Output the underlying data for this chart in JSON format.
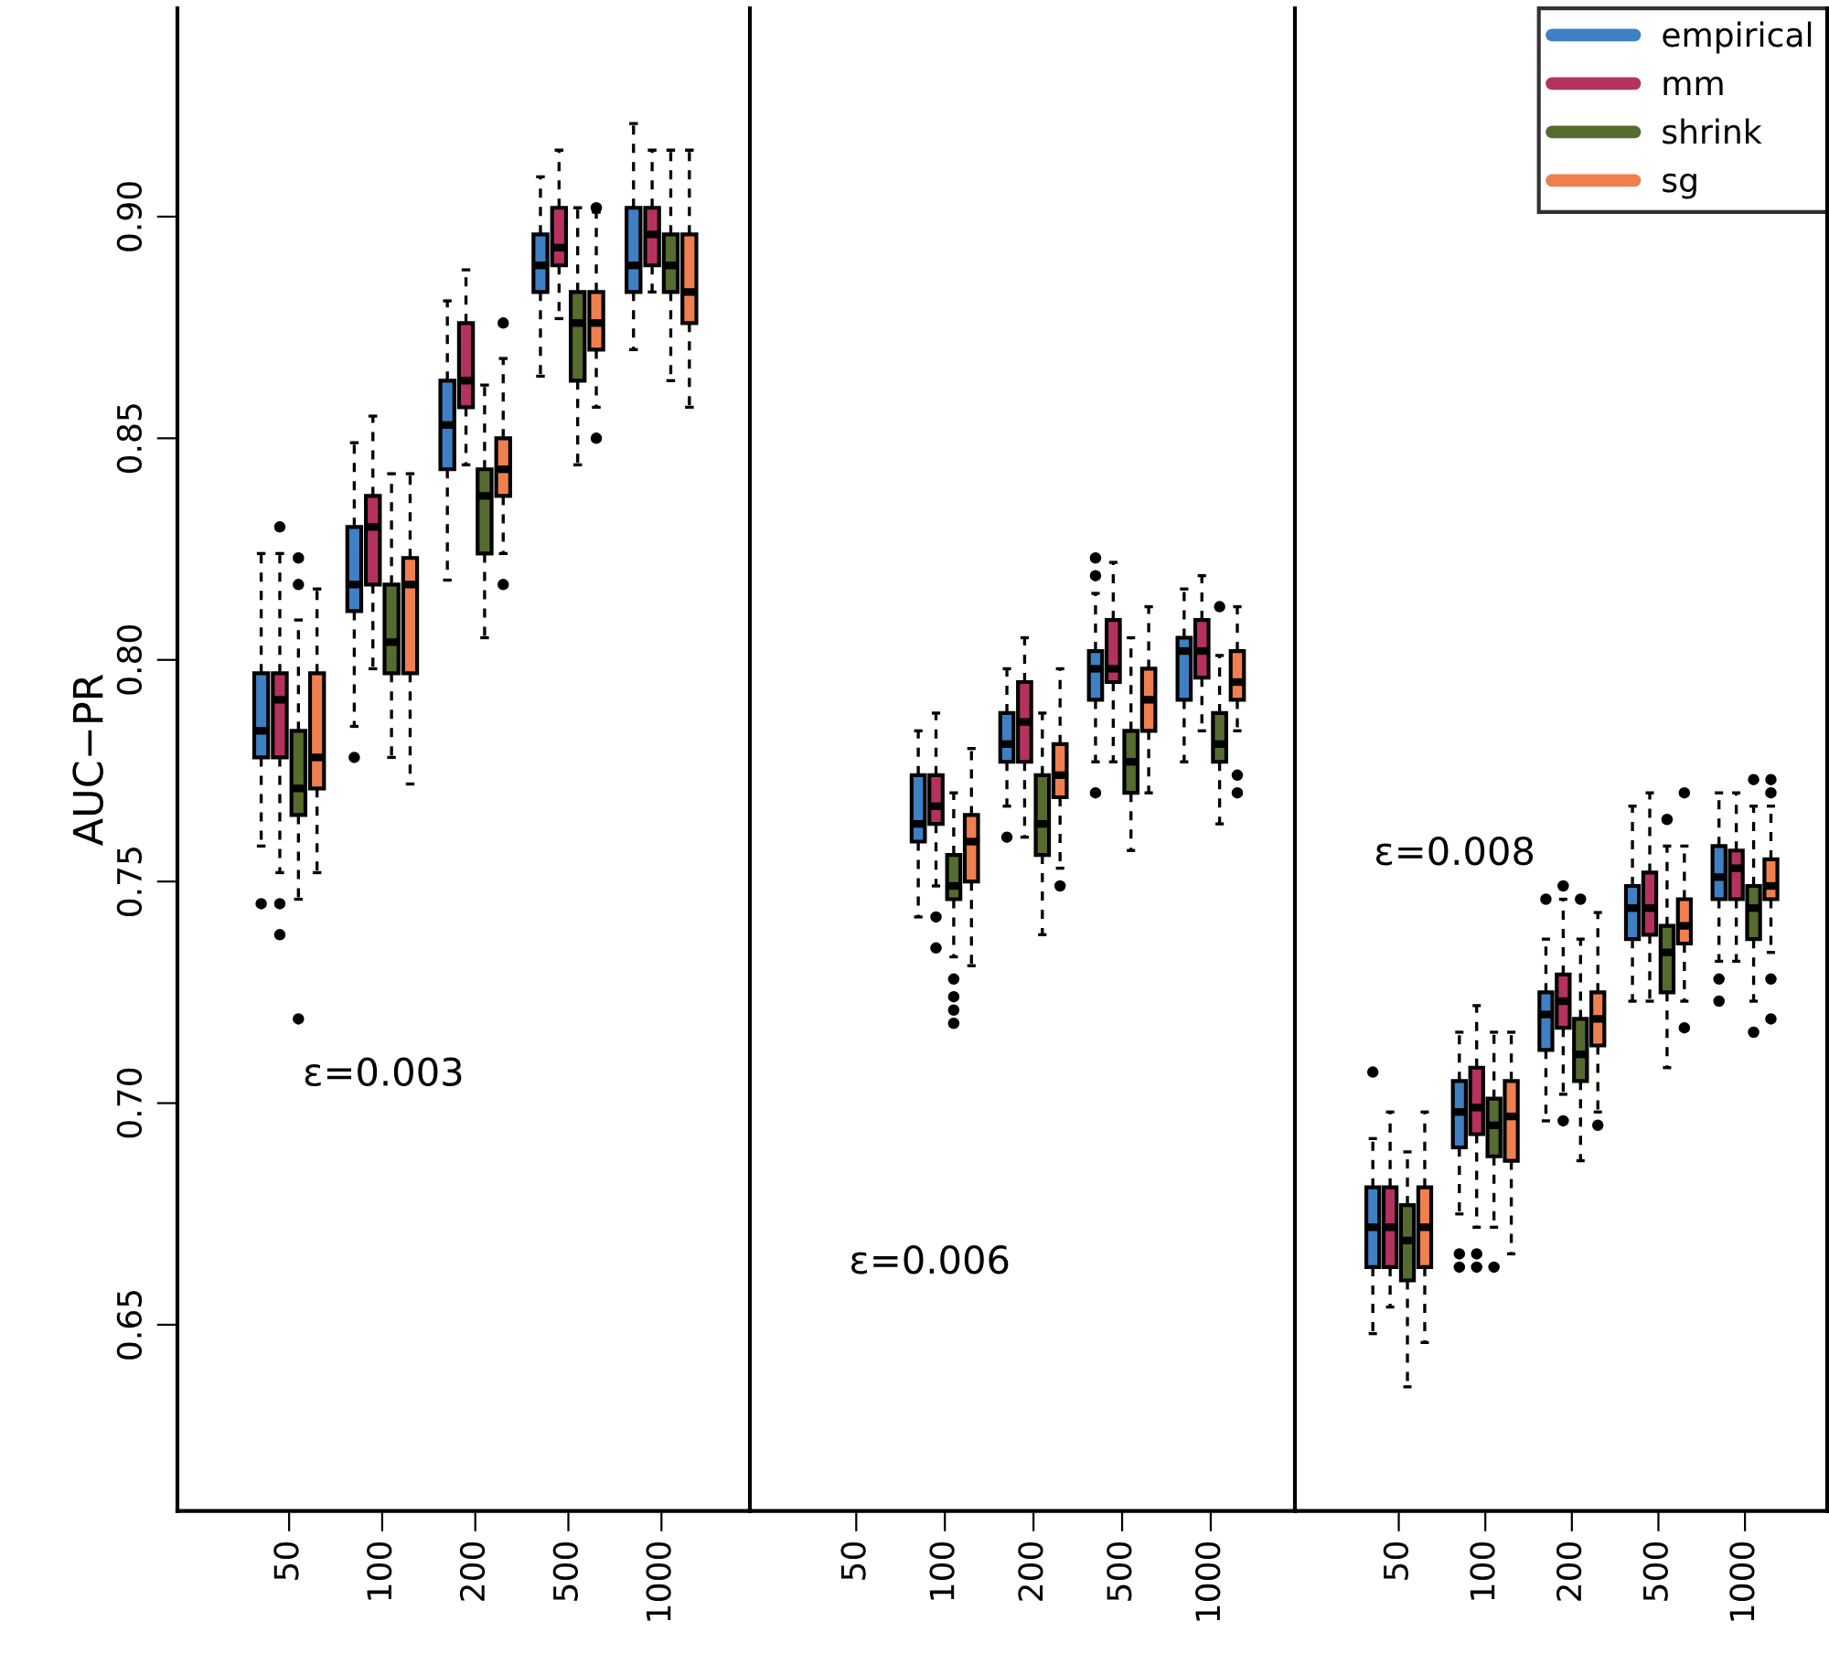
{
  "chart_data": [
    {
      "type": "box",
      "ylabel": "AUC−PR",
      "categories": [
        "50",
        "100",
        "200",
        "500",
        "1000"
      ],
      "ylim": [
        0.608,
        0.947
      ],
      "yticks": [
        {
          "value": 0.65,
          "label": "0.65"
        },
        {
          "value": 0.7,
          "label": "0.70"
        },
        {
          "value": 0.75,
          "label": "0.75"
        },
        {
          "value": 0.8,
          "label": "0.80"
        },
        {
          "value": 0.85,
          "label": "0.85"
        },
        {
          "value": 0.9,
          "label": "0.90"
        }
      ],
      "tick_labels": "xy",
      "annotations": [
        "ε=0.003"
      ],
      "series": [
        {
          "color": "#3f7fc4",
          "boxes": [
            {
              "low": 0.758,
              "q1": 0.778,
              "median": 0.784,
              "q3": 0.797,
              "high": 0.824,
              "outliers": [
                0.745
              ]
            },
            {
              "low": 0.785,
              "q1": 0.811,
              "median": 0.817,
              "q3": 0.83,
              "high": 0.849,
              "outliers": [
                0.778
              ]
            },
            {
              "low": 0.818,
              "q1": 0.843,
              "median": 0.853,
              "q3": 0.863,
              "high": 0.881
            },
            {
              "low": 0.864,
              "q1": 0.883,
              "median": 0.889,
              "q3": 0.896,
              "high": 0.909
            },
            {
              "low": 0.87,
              "q1": 0.883,
              "median": 0.889,
              "q3": 0.902,
              "high": 0.921
            }
          ]
        },
        {
          "color": "#b5325f",
          "boxes": [
            {
              "low": 0.752,
              "q1": 0.778,
              "median": 0.791,
              "q3": 0.797,
              "high": 0.824,
              "outliers": [
                0.83,
                0.745,
                0.738
              ]
            },
            {
              "low": 0.798,
              "q1": 0.817,
              "median": 0.83,
              "q3": 0.837,
              "high": 0.855
            },
            {
              "low": 0.844,
              "q1": 0.857,
              "median": 0.863,
              "q3": 0.876,
              "high": 0.888
            },
            {
              "low": 0.877,
              "q1": 0.889,
              "median": 0.893,
              "q3": 0.902,
              "high": 0.915
            },
            {
              "low": 0.883,
              "q1": 0.889,
              "median": 0.896,
              "q3": 0.902,
              "high": 0.915
            }
          ]
        },
        {
          "color": "#566b2e",
          "boxes": [
            {
              "low": 0.746,
              "q1": 0.765,
              "median": 0.771,
              "q3": 0.784,
              "high": 0.809,
              "outliers": [
                0.823,
                0.817,
                0.719
              ]
            },
            {
              "low": 0.778,
              "q1": 0.797,
              "median": 0.804,
              "q3": 0.817,
              "high": 0.842
            },
            {
              "low": 0.805,
              "q1": 0.824,
              "median": 0.837,
              "q3": 0.843,
              "high": 0.862
            },
            {
              "low": 0.844,
              "q1": 0.863,
              "median": 0.876,
              "q3": 0.883,
              "high": 0.902
            },
            {
              "low": 0.863,
              "q1": 0.883,
              "median": 0.889,
              "q3": 0.896,
              "high": 0.915
            }
          ]
        },
        {
          "color": "#f07f4f",
          "boxes": [
            {
              "low": 0.752,
              "q1": 0.771,
              "median": 0.778,
              "q3": 0.797,
              "high": 0.816
            },
            {
              "low": 0.772,
              "q1": 0.797,
              "median": 0.817,
              "q3": 0.823,
              "high": 0.842
            },
            {
              "low": 0.824,
              "q1": 0.837,
              "median": 0.843,
              "q3": 0.85,
              "high": 0.868,
              "outliers": [
                0.876,
                0.817
              ]
            },
            {
              "low": 0.857,
              "q1": 0.87,
              "median": 0.876,
              "q3": 0.883,
              "high": 0.901,
              "outliers": [
                0.902,
                0.85
              ]
            },
            {
              "low": 0.857,
              "q1": 0.876,
              "median": 0.883,
              "q3": 0.896,
              "high": 0.915
            }
          ]
        }
      ]
    },
    {
      "type": "box",
      "categories": [
        "50",
        "100",
        "200",
        "500",
        "1000"
      ],
      "ylim": [
        0.608,
        0.947
      ],
      "tick_labels": "x",
      "annotations": [
        "ε=0.006"
      ],
      "series": [
        {
          "color": "#3f7fc4",
          "boxes": [
            null,
            {
              "low": 0.742,
              "q1": 0.759,
              "median": 0.763,
              "q3": 0.774,
              "high": 0.784
            },
            {
              "low": 0.767,
              "q1": 0.777,
              "median": 0.781,
              "q3": 0.788,
              "high": 0.798,
              "outliers": [
                0.76
              ]
            },
            {
              "low": 0.777,
              "q1": 0.791,
              "median": 0.798,
              "q3": 0.802,
              "high": 0.815,
              "outliers": [
                0.823,
                0.819,
                0.77
              ]
            },
            {
              "low": 0.777,
              "q1": 0.791,
              "median": 0.802,
              "q3": 0.805,
              "high": 0.816
            }
          ]
        },
        {
          "color": "#b5325f",
          "boxes": [
            null,
            {
              "low": 0.749,
              "q1": 0.763,
              "median": 0.767,
              "q3": 0.774,
              "high": 0.788,
              "outliers": [
                0.742,
                0.735
              ]
            },
            {
              "low": 0.76,
              "q1": 0.777,
              "median": 0.786,
              "q3": 0.795,
              "high": 0.805
            },
            {
              "low": 0.777,
              "q1": 0.795,
              "median": 0.798,
              "q3": 0.809,
              "high": 0.822
            },
            {
              "low": 0.784,
              "q1": 0.796,
              "median": 0.802,
              "q3": 0.809,
              "high": 0.819
            }
          ]
        },
        {
          "color": "#566b2e",
          "boxes": [
            null,
            {
              "low": 0.733,
              "q1": 0.746,
              "median": 0.749,
              "q3": 0.756,
              "high": 0.77,
              "outliers": [
                0.728,
                0.724,
                0.721,
                0.718
              ]
            },
            {
              "low": 0.738,
              "q1": 0.756,
              "median": 0.763,
              "q3": 0.774,
              "high": 0.788
            },
            {
              "low": 0.757,
              "q1": 0.77,
              "median": 0.777,
              "q3": 0.784,
              "high": 0.805
            },
            {
              "low": 0.763,
              "q1": 0.777,
              "median": 0.781,
              "q3": 0.788,
              "high": 0.801,
              "outliers": [
                0.812
              ]
            }
          ]
        },
        {
          "color": "#f07f4f",
          "boxes": [
            null,
            {
              "low": 0.731,
              "q1": 0.75,
              "median": 0.759,
              "q3": 0.765,
              "high": 0.78
            },
            {
              "low": 0.753,
              "q1": 0.769,
              "median": 0.774,
              "q3": 0.781,
              "high": 0.798,
              "outliers": [
                0.749
              ]
            },
            {
              "low": 0.77,
              "q1": 0.784,
              "median": 0.791,
              "q3": 0.798,
              "high": 0.812
            },
            {
              "low": 0.784,
              "q1": 0.791,
              "median": 0.795,
              "q3": 0.802,
              "high": 0.812,
              "outliers": [
                0.774,
                0.77
              ]
            }
          ]
        }
      ]
    },
    {
      "type": "box",
      "categories": [
        "50",
        "100",
        "200",
        "500",
        "1000"
      ],
      "ylim": [
        0.608,
        0.947
      ],
      "tick_labels": "x",
      "legend": "top right",
      "annotations": [
        "ε=0.008"
      ],
      "series": [
        {
          "name": "empirical",
          "color": "#3f7fc4",
          "boxes": [
            {
              "low": 0.648,
              "q1": 0.663,
              "median": 0.672,
              "q3": 0.681,
              "high": 0.692,
              "outliers": [
                0.707
              ]
            },
            {
              "low": 0.675,
              "q1": 0.69,
              "median": 0.698,
              "q3": 0.705,
              "high": 0.716,
              "outliers": [
                0.666,
                0.663
              ]
            },
            {
              "low": 0.696,
              "q1": 0.712,
              "median": 0.72,
              "q3": 0.725,
              "high": 0.737,
              "outliers": [
                0.746
              ]
            },
            {
              "low": 0.723,
              "q1": 0.737,
              "median": 0.744,
              "q3": 0.749,
              "high": 0.767
            },
            {
              "low": 0.732,
              "q1": 0.746,
              "median": 0.751,
              "q3": 0.758,
              "high": 0.77,
              "outliers": [
                0.728,
                0.723
              ]
            }
          ]
        },
        {
          "name": "mm",
          "color": "#b5325f",
          "boxes": [
            {
              "low": 0.654,
              "q1": 0.663,
              "median": 0.672,
              "q3": 0.681,
              "high": 0.698
            },
            {
              "low": 0.672,
              "q1": 0.693,
              "median": 0.699,
              "q3": 0.708,
              "high": 0.722,
              "outliers": [
                0.666,
                0.663
              ]
            },
            {
              "low": 0.702,
              "q1": 0.717,
              "median": 0.723,
              "q3": 0.729,
              "high": 0.746,
              "outliers": [
                0.749,
                0.696
              ]
            },
            {
              "low": 0.723,
              "q1": 0.738,
              "median": 0.744,
              "q3": 0.752,
              "high": 0.77
            },
            {
              "low": 0.732,
              "q1": 0.746,
              "median": 0.753,
              "q3": 0.757,
              "high": 0.77
            }
          ]
        },
        {
          "name": "shrink",
          "color": "#566b2e",
          "boxes": [
            {
              "low": 0.636,
              "q1": 0.66,
              "median": 0.669,
              "q3": 0.677,
              "high": 0.689
            },
            {
              "low": 0.672,
              "q1": 0.688,
              "median": 0.695,
              "q3": 0.701,
              "high": 0.716,
              "outliers": [
                0.663
              ]
            },
            {
              "low": 0.687,
              "q1": 0.705,
              "median": 0.711,
              "q3": 0.719,
              "high": 0.737,
              "outliers": [
                0.746
              ]
            },
            {
              "low": 0.708,
              "q1": 0.725,
              "median": 0.734,
              "q3": 0.74,
              "high": 0.758,
              "outliers": [
                0.764
              ]
            },
            {
              "low": 0.723,
              "q1": 0.737,
              "median": 0.744,
              "q3": 0.749,
              "high": 0.767,
              "outliers": [
                0.773,
                0.716
              ]
            }
          ]
        },
        {
          "name": "sg",
          "color": "#f07f4f",
          "boxes": [
            {
              "low": 0.646,
              "q1": 0.663,
              "median": 0.672,
              "q3": 0.681,
              "high": 0.698
            },
            {
              "low": 0.666,
              "q1": 0.687,
              "median": 0.697,
              "q3": 0.705,
              "high": 0.716
            },
            {
              "low": 0.698,
              "q1": 0.713,
              "median": 0.719,
              "q3": 0.725,
              "high": 0.743,
              "outliers": [
                0.695
              ]
            },
            {
              "low": 0.723,
              "q1": 0.736,
              "median": 0.74,
              "q3": 0.746,
              "high": 0.758,
              "outliers": [
                0.77,
                0.717
              ]
            },
            {
              "low": 0.734,
              "q1": 0.746,
              "median": 0.749,
              "q3": 0.755,
              "high": 0.767,
              "outliers": [
                0.773,
                0.77,
                0.728,
                0.719
              ]
            }
          ]
        }
      ]
    }
  ]
}
